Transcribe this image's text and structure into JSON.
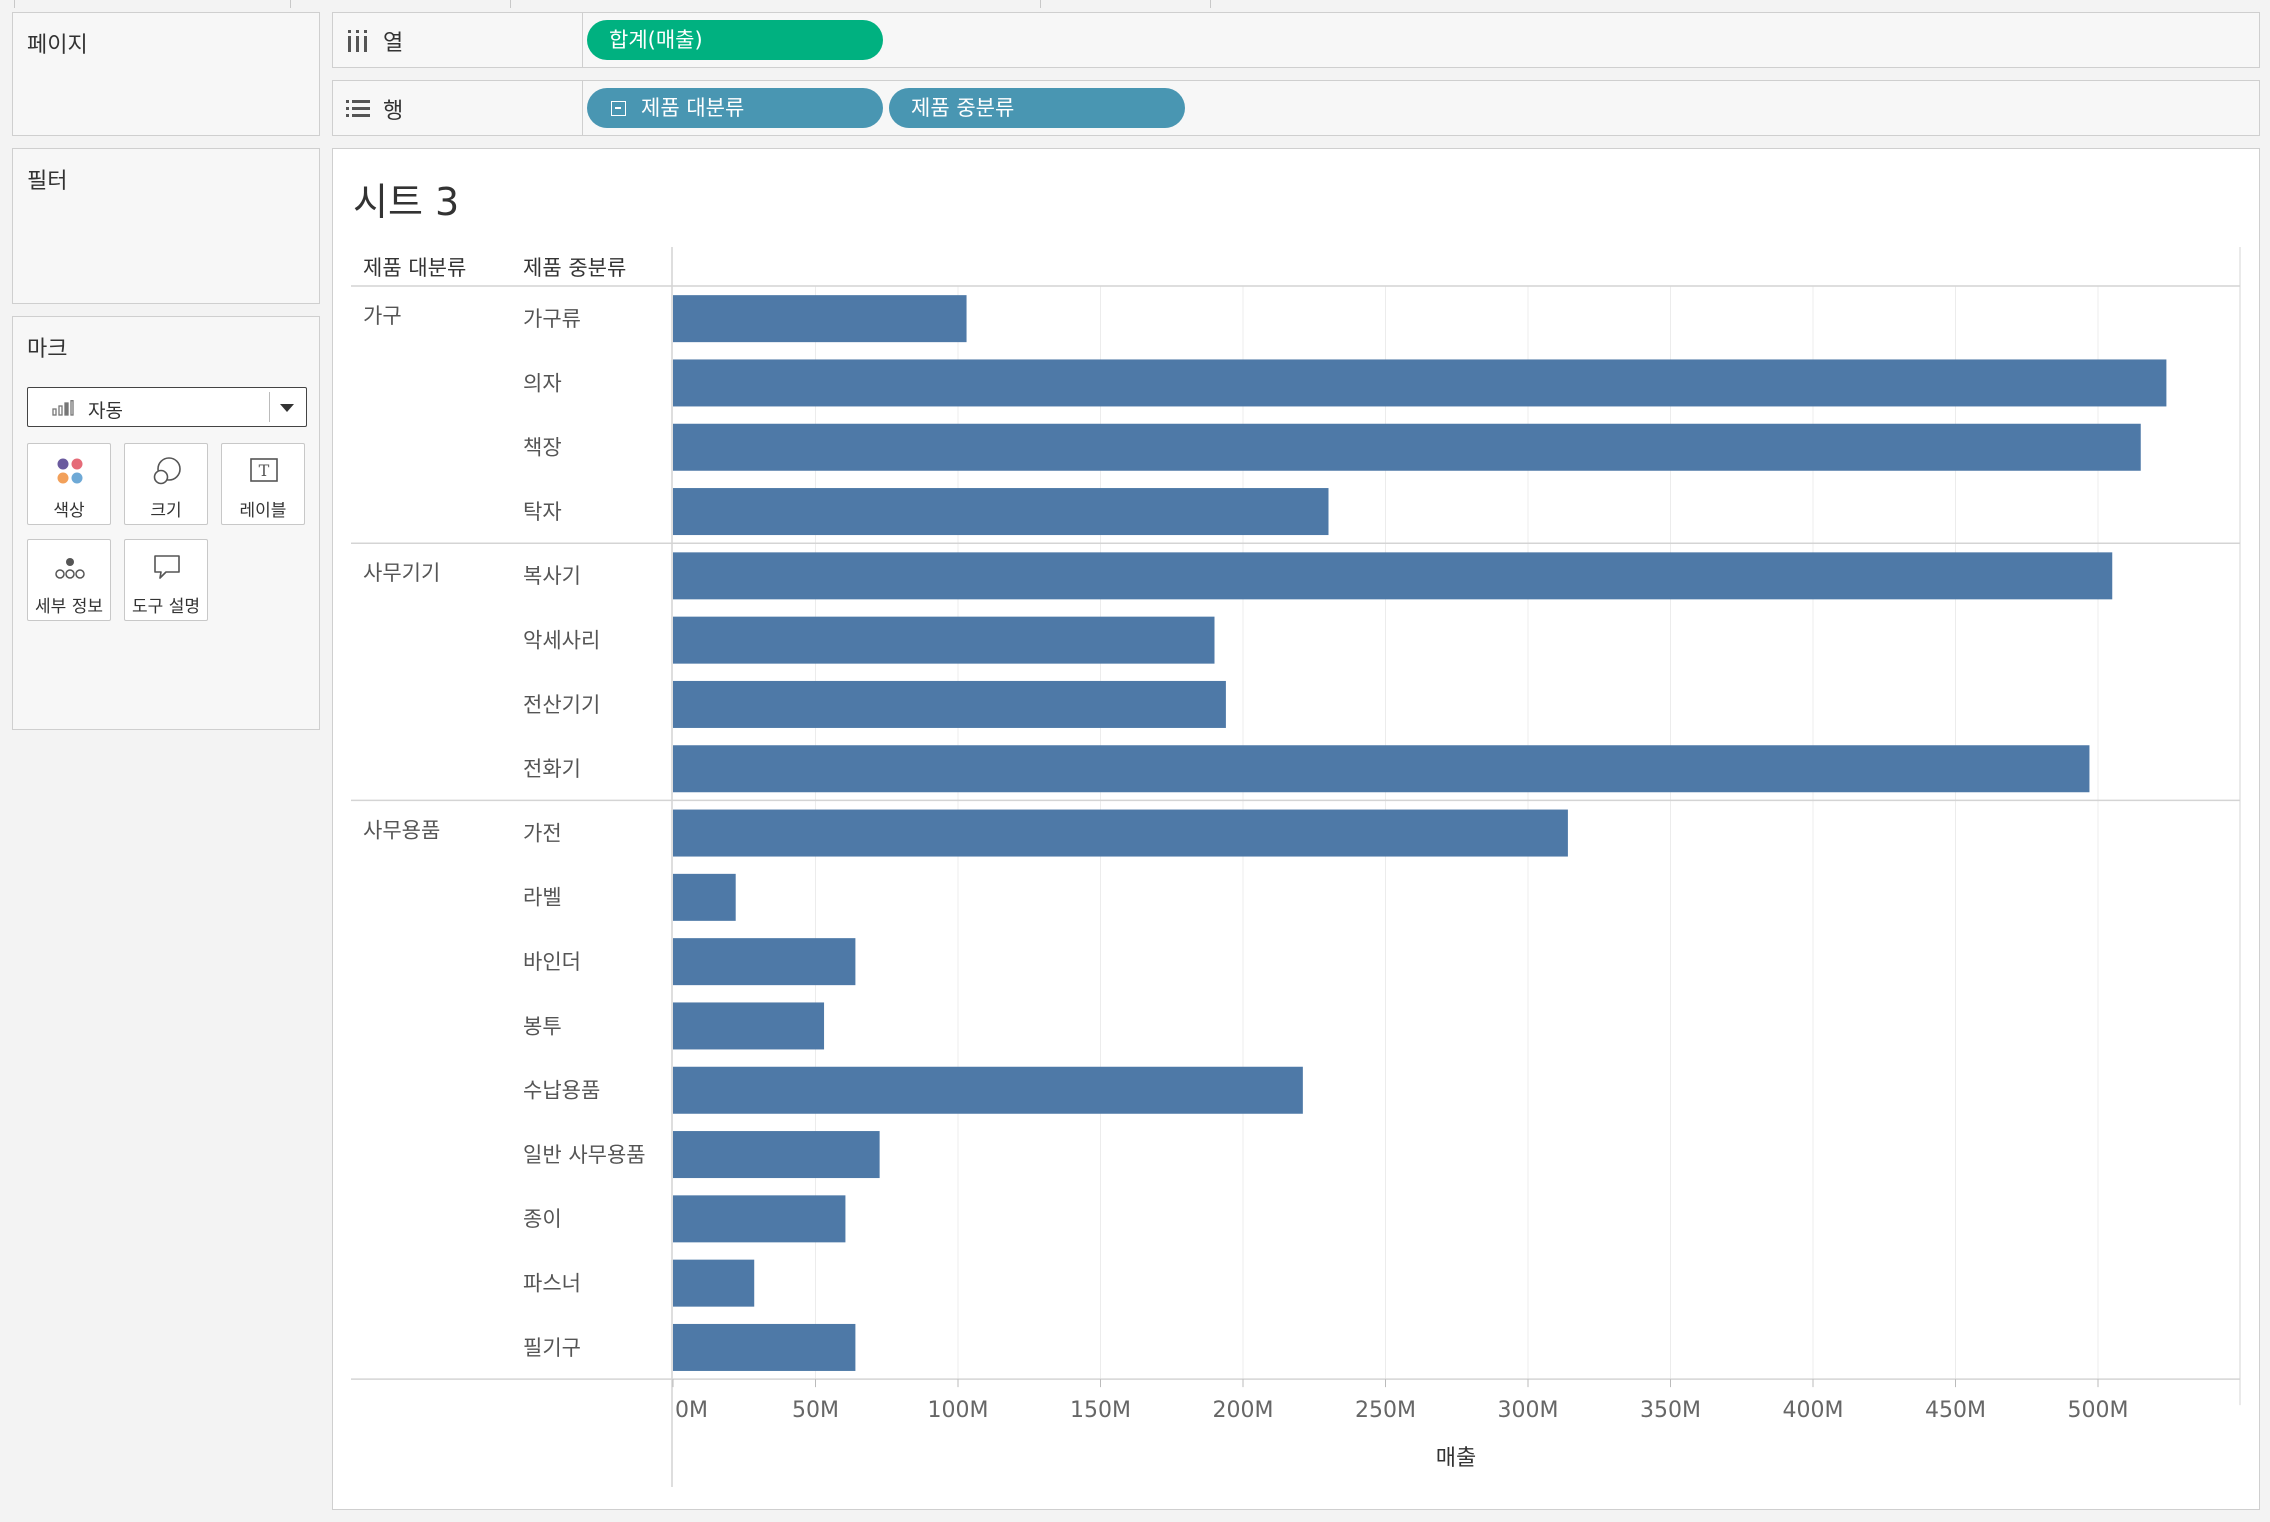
{
  "panels": {
    "pages": "페이지",
    "filters": "필터",
    "marks": "마크"
  },
  "marks": {
    "type_selected": "자동",
    "cards": [
      {
        "label": "색상",
        "icon": "color-dots-icon"
      },
      {
        "label": "크기",
        "icon": "size-circles-icon"
      },
      {
        "label": "레이블",
        "icon": "label-t-icon"
      },
      {
        "label": "세부 정보",
        "icon": "detail-dots-icon"
      },
      {
        "label": "도구 설명",
        "icon": "tooltip-bubble-icon"
      }
    ]
  },
  "shelves": {
    "columns": {
      "label": "열",
      "icon": "columns-icon",
      "pills": [
        "합계(매출)"
      ]
    },
    "rows": {
      "label": "행",
      "icon": "rows-icon",
      "pills": [
        "제품 대분류",
        "제품 중분류"
      ]
    }
  },
  "colors": {
    "bar": "#4e79a7",
    "pill_measure": "#00b180",
    "pill_dimension": "#4996b2"
  },
  "sheet": {
    "title": "시트 3"
  },
  "chart_data": {
    "type": "bar",
    "orientation": "horizontal",
    "row_headers": [
      "제품 대분류",
      "제품 중분류"
    ],
    "xlabel": "매출",
    "xlim": [
      0,
      550000000
    ],
    "x_ticks": [
      0,
      50000000,
      100000000,
      150000000,
      200000000,
      250000000,
      300000000,
      350000000,
      400000000,
      450000000,
      500000000
    ],
    "x_tick_labels": [
      "0M",
      "50M",
      "100M",
      "150M",
      "200M",
      "250M",
      "300M",
      "350M",
      "400M",
      "450M",
      "500M"
    ],
    "grid": true,
    "groups": [
      {
        "name": "가구",
        "items": [
          {
            "label": "가구류",
            "value": 103000000
          },
          {
            "label": "의자",
            "value": 524000000
          },
          {
            "label": "책장",
            "value": 515000000
          },
          {
            "label": "탁자",
            "value": 230000000
          }
        ]
      },
      {
        "name": "사무기기",
        "items": [
          {
            "label": "복사기",
            "value": 505000000
          },
          {
            "label": "악세사리",
            "value": 190000000
          },
          {
            "label": "전산기기",
            "value": 194000000
          },
          {
            "label": "전화기",
            "value": 497000000
          }
        ]
      },
      {
        "name": "사무용품",
        "items": [
          {
            "label": "가전",
            "value": 314000000
          },
          {
            "label": "라벨",
            "value": 22000000
          },
          {
            "label": "바인더",
            "value": 64000000
          },
          {
            "label": "봉투",
            "value": 53000000
          },
          {
            "label": "수납용품",
            "value": 221000000
          },
          {
            "label": "일반 사무용품",
            "value": 72500000
          },
          {
            "label": "종이",
            "value": 60500000
          },
          {
            "label": "파스너",
            "value": 28500000
          },
          {
            "label": "필기구",
            "value": 64000000
          }
        ]
      }
    ]
  }
}
